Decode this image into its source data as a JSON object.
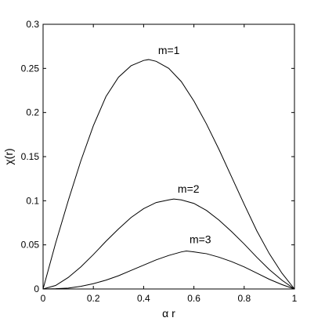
{
  "chart_data": {
    "type": "line",
    "xlabel": "α r",
    "ylabel": "χ(r)",
    "xlim": [
      0,
      1
    ],
    "ylim": [
      0,
      0.3
    ],
    "xticks": [
      "0",
      "0.2",
      "0.4",
      "0.6",
      "0.8",
      "1"
    ],
    "xtick_values": [
      0,
      0.2,
      0.4,
      0.6,
      0.8,
      1
    ],
    "yticks": [
      "0",
      "0.05",
      "0.1",
      "0.15",
      "0.2",
      "0.25",
      "0.3"
    ],
    "ytick_values": [
      0,
      0.05,
      0.1,
      0.15,
      0.2,
      0.25,
      0.3
    ],
    "grid": false,
    "line_color": "#000000",
    "series": [
      {
        "name": "m=1",
        "x": [
          0,
          0.05,
          0.1,
          0.15,
          0.2,
          0.25,
          0.3,
          0.35,
          0.4,
          0.42,
          0.45,
          0.5,
          0.55,
          0.6,
          0.65,
          0.7,
          0.75,
          0.8,
          0.85,
          0.9,
          0.95,
          1
        ],
        "y": [
          0,
          0.052,
          0.1,
          0.145,
          0.185,
          0.218,
          0.24,
          0.253,
          0.259,
          0.26,
          0.258,
          0.25,
          0.235,
          0.213,
          0.187,
          0.158,
          0.127,
          0.096,
          0.066,
          0.04,
          0.018,
          0
        ]
      },
      {
        "name": "m=2",
        "x": [
          0,
          0.05,
          0.1,
          0.15,
          0.2,
          0.25,
          0.3,
          0.35,
          0.4,
          0.45,
          0.5,
          0.52,
          0.55,
          0.6,
          0.65,
          0.7,
          0.75,
          0.8,
          0.85,
          0.9,
          0.95,
          1
        ],
        "y": [
          0,
          0.004,
          0.013,
          0.025,
          0.039,
          0.054,
          0.068,
          0.081,
          0.091,
          0.098,
          0.101,
          0.102,
          0.101,
          0.097,
          0.089,
          0.078,
          0.065,
          0.051,
          0.036,
          0.022,
          0.01,
          0
        ]
      },
      {
        "name": "m=3",
        "x": [
          0,
          0.05,
          0.1,
          0.15,
          0.2,
          0.25,
          0.3,
          0.35,
          0.4,
          0.45,
          0.5,
          0.55,
          0.57,
          0.6,
          0.65,
          0.7,
          0.75,
          0.8,
          0.85,
          0.9,
          0.95,
          1
        ],
        "y": [
          0,
          0.0003,
          0.001,
          0.003,
          0.006,
          0.01,
          0.015,
          0.021,
          0.027,
          0.033,
          0.038,
          0.042,
          0.043,
          0.042,
          0.04,
          0.036,
          0.031,
          0.025,
          0.018,
          0.011,
          0.005,
          0
        ]
      }
    ]
  }
}
